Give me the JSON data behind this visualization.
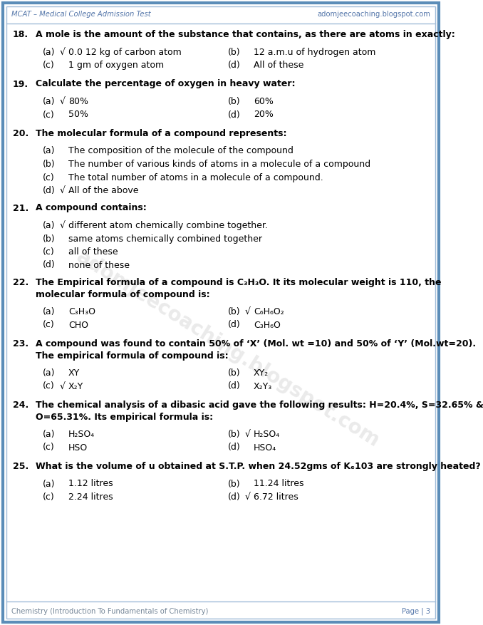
{
  "header_left": "MCAT – Medical College Admission Test",
  "header_right": "adomjeecoaching.blogspot.com",
  "footer_left": "Chemistry (Introduction To Fundamentals of Chemistry)",
  "footer_right": "Page | 3",
  "watermark": "adomjeecoaching.blogspot.com",
  "bg_color": "#ffffff",
  "questions": [
    {
      "num": "18.",
      "question": "A mole is the amount of the substance that contains, as there are atoms in exactly:",
      "options": [
        {
          "label": "(a)",
          "check": true,
          "text": "0.0 12 kg of carbon atom"
        },
        {
          "label": "(b)",
          "check": false,
          "text": "12 a.m.u of hydrogen atom"
        },
        {
          "label": "(c)",
          "check": false,
          "text": "1 gm of oxygen atom"
        },
        {
          "label": "(d)",
          "check": false,
          "text": "All of these"
        }
      ],
      "layout": "2col"
    },
    {
      "num": "19.",
      "question": "Calculate the percentage of oxygen in heavy water:",
      "options": [
        {
          "label": "(a)",
          "check": true,
          "text": "80%"
        },
        {
          "label": "(b)",
          "check": false,
          "text": "60%"
        },
        {
          "label": "(c)",
          "check": false,
          "text": "50%"
        },
        {
          "label": "(d)",
          "check": false,
          "text": "20%"
        }
      ],
      "layout": "2col"
    },
    {
      "num": "20.",
      "question": "The molecular formula of a compound represents:",
      "options": [
        {
          "label": "(a)",
          "check": false,
          "text": "The composition of the molecule of the compound"
        },
        {
          "label": "(b)",
          "check": false,
          "text": "The number of various kinds of atoms in a molecule of a compound"
        },
        {
          "label": "(c)",
          "check": false,
          "text": "The total number of atoms in a molecule of a compound."
        },
        {
          "label": "(d)",
          "check": true,
          "text": "All of the above"
        }
      ],
      "layout": "1col"
    },
    {
      "num": "21.",
      "question": "A compound contains:",
      "options": [
        {
          "label": "(a)",
          "check": true,
          "text": "different atom chemically combine together."
        },
        {
          "label": "(b)",
          "check": false,
          "text": "same atoms chemically combined together"
        },
        {
          "label": "(c)",
          "check": false,
          "text": "all of these"
        },
        {
          "label": "(d)",
          "check": false,
          "text": "none of these"
        }
      ],
      "layout": "1col"
    },
    {
      "num": "22.",
      "question": "The Empirical formula of a compound is C₃H₃O. It its molecular weight is 110, the\nmolecular formula of compound is:",
      "options": [
        {
          "label": "(a)",
          "check": false,
          "text": "C₃H₃O"
        },
        {
          "label": "(b)",
          "check": true,
          "text": "C₆H₆O₂"
        },
        {
          "label": "(c)",
          "check": false,
          "text": "CHO"
        },
        {
          "label": "(d)",
          "check": false,
          "text": "C₃H₆O"
        }
      ],
      "layout": "2col"
    },
    {
      "num": "23.",
      "question": "A compound was found to contain 50% of ‘X’ (Mol. wt =10) and 50% of ‘Y’ (Mol.wt=20).\nThe empirical formula of compound is:",
      "options": [
        {
          "label": "(a)",
          "check": false,
          "text": "XY"
        },
        {
          "label": "(b)",
          "check": false,
          "text": "XY₂"
        },
        {
          "label": "(c)",
          "check": true,
          "text": "X₂Y"
        },
        {
          "label": "(d)",
          "check": false,
          "text": "X₂Y₃"
        }
      ],
      "layout": "2col"
    },
    {
      "num": "24.",
      "question": "The chemical analysis of a dibasic acid gave the following results: H=20.4%, S=32.65% &\nO=65.31%. Its empirical formula is:",
      "options": [
        {
          "label": "(a)",
          "check": false,
          "text": "H₂SO₄"
        },
        {
          "label": "(b)",
          "check": true,
          "text": "H₂SO₄"
        },
        {
          "label": "(c)",
          "check": false,
          "text": "HSO"
        },
        {
          "label": "(d)",
          "check": false,
          "text": "HSO₄"
        }
      ],
      "layout": "2col"
    },
    {
      "num": "25.",
      "question": "What is the volume of u obtained at S.T.P. when 24.52gms of Kₑ103 are strongly heated?",
      "options": [
        {
          "label": "(a)",
          "check": false,
          "text": "1.12 litres"
        },
        {
          "label": "(b)",
          "check": false,
          "text": "11.24 litres"
        },
        {
          "label": "(c)",
          "check": false,
          "text": "2.24 litres"
        },
        {
          "label": "(d)",
          "check": true,
          "text": "6.72 litres"
        }
      ],
      "layout": "2col"
    }
  ]
}
